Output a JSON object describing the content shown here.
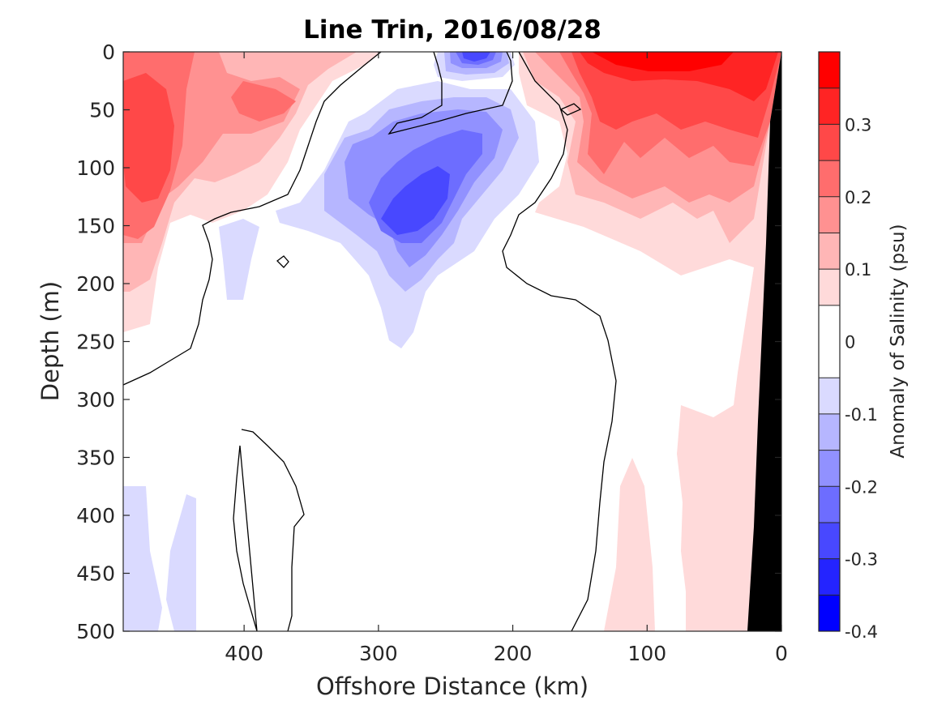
{
  "chart_data": {
    "type": "heatmap",
    "title": "Line Trin, 2016/08/28",
    "xlabel": "Offshore Distance (km)",
    "ylabel": "Depth (m)",
    "x_reversed": true,
    "xlim": [
      0,
      490
    ],
    "ylim": [
      0,
      500
    ],
    "y_reversed": true,
    "x_ticks": [
      "400",
      "300",
      "200",
      "100",
      "0"
    ],
    "x_tick_values": [
      400,
      300,
      200,
      100,
      0
    ],
    "y_ticks": [
      "0",
      "50",
      "100",
      "150",
      "200",
      "250",
      "300",
      "350",
      "400",
      "450",
      "500"
    ],
    "y_tick_values": [
      0,
      50,
      100,
      150,
      200,
      250,
      300,
      350,
      400,
      450,
      500
    ],
    "grid": false,
    "colorbar": {
      "label": "Anomaly of Salinity (psu)",
      "range": [
        -0.4,
        0.4
      ],
      "tick_labels": [
        "0.3",
        "0.2",
        "0.1",
        "0",
        "-0.1",
        "-0.2",
        "-0.3",
        "-0.4"
      ],
      "tick_values": [
        0.3,
        0.2,
        0.1,
        0,
        -0.1,
        -0.2,
        -0.3,
        -0.4
      ],
      "levels": [
        -0.4,
        -0.35,
        -0.3,
        -0.25,
        -0.2,
        -0.15,
        -0.1,
        -0.05,
        0.05,
        0.1,
        0.15,
        0.2,
        0.25,
        0.3,
        0.35,
        0.4
      ],
      "colors": [
        "#0000ff",
        "#2424ff",
        "#4848ff",
        "#6d6dff",
        "#9191ff",
        "#b6b6ff",
        "#dadaff",
        "#ffffff",
        "#ffdada",
        "#ffb6b6",
        "#ff9191",
        "#ff6d6d",
        "#ff4848",
        "#ff2424",
        "#ff0000"
      ]
    },
    "features": [
      {
        "name": "nearshore salinity maximum",
        "center_km": 80,
        "center_depth_m": 60,
        "value": 0.35
      },
      {
        "name": "offshore salinity maximum",
        "center_km": 470,
        "center_depth_m": 110,
        "value": 0.25
      },
      {
        "name": "subsurface fresh core",
        "center_km": 270,
        "center_depth_m": 140,
        "value": -0.3
      },
      {
        "name": "surface fresh core",
        "center_km": 230,
        "center_depth_m": 5,
        "value": -0.3
      },
      {
        "name": "deep fresh tongues",
        "center_km": 460,
        "center_depth_m": 440,
        "value": -0.05
      },
      {
        "name": "deep saline tongue",
        "center_km": 120,
        "center_depth_m": 450,
        "value": 0.05
      },
      {
        "name": "bathymetry mask",
        "center_km": 10,
        "center_depth_m": 300,
        "value": null
      }
    ]
  }
}
